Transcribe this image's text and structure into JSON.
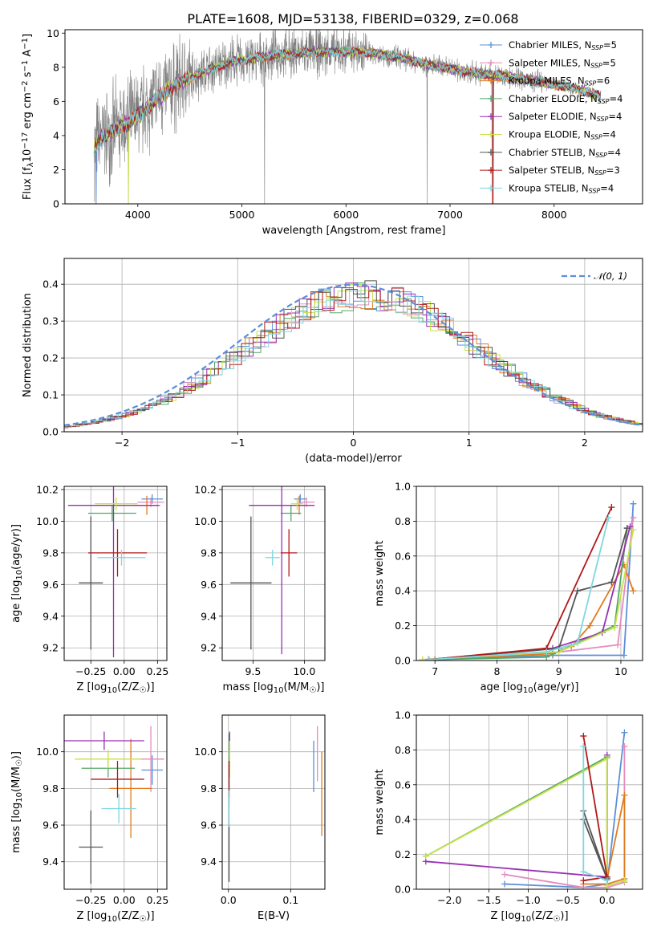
{
  "figure": {
    "title": "PLATE=1608, MJD=53138, FIBERID=0329, z=0.068"
  },
  "colors": {
    "Chabrier MILES": "#5b8fd9",
    "Salpeter MILES": "#e58bbd",
    "Kroupa MILES": "#e07b20",
    "Chabrier ELODIE": "#55a868",
    "Salpeter ELODIE": "#9a2fb5",
    "Kroupa ELODIE": "#c7e24a",
    "Chabrier STELIB": "#555555",
    "Salpeter STELIB": "#b01818",
    "Kroupa STELIB": "#7ed7e0",
    "data": "#808080",
    "normal": "#5b8fd9"
  },
  "chart_data": [
    {
      "id": "spectrum",
      "type": "line",
      "xlabel": "wavelength [Angstrom, rest frame]",
      "ylabel": "Flux [fλ10⁻¹⁷ erg cm⁻² s⁻¹ A⁻¹]",
      "xlim": [
        3300,
        8850
      ],
      "ylim": [
        0,
        10.2
      ],
      "xticks": [
        "4000",
        "5000",
        "6000",
        "7000",
        "8000"
      ],
      "yticks": [
        "0",
        "2",
        "4",
        "6",
        "8",
        "10"
      ],
      "grid": false,
      "legend_position": "top-right",
      "legend": [
        {
          "name": "Chabrier MILES",
          "n": "5"
        },
        {
          "name": "Salpeter MILES",
          "n": "5"
        },
        {
          "name": "Kroupa MILES",
          "n": "6"
        },
        {
          "name": "Chabrier ELODIE",
          "n": "4"
        },
        {
          "name": "Salpeter ELODIE",
          "n": "4"
        },
        {
          "name": "Kroupa ELODIE",
          "n": "4"
        },
        {
          "name": "Chabrier STELIB",
          "n": "4"
        },
        {
          "name": "Salpeter STELIB",
          "n": "3"
        },
        {
          "name": "Kroupa STELIB",
          "n": "4"
        }
      ],
      "continuum": {
        "x": [
          3580,
          3650,
          3750,
          3850,
          3950,
          4050,
          4150,
          4250,
          4350,
          4500,
          4700,
          4900,
          5100,
          5300,
          5500,
          5700,
          5900,
          6100,
          6300,
          6500,
          6700,
          6900,
          7100,
          7300,
          7500,
          7700,
          7900,
          8100,
          8300,
          8450
        ],
        "y": [
          3.3,
          3.9,
          4.2,
          4.6,
          4.9,
          5.4,
          6.0,
          6.5,
          6.9,
          7.4,
          7.9,
          8.3,
          8.5,
          8.7,
          8.8,
          8.9,
          8.9,
          8.9,
          8.8,
          8.6,
          8.3,
          8.0,
          7.8,
          7.6,
          7.5,
          7.3,
          7.1,
          6.9,
          6.6,
          6.3
        ]
      },
      "spikes": [
        {
          "x": 3600,
          "y": 0.0
        },
        {
          "x": 3910,
          "y": 0.0
        },
        {
          "x": 5218,
          "y": 0.0
        },
        {
          "x": 6780,
          "y": 0.0
        },
        {
          "x": 7410,
          "y": 0.0
        }
      ]
    },
    {
      "id": "residuals",
      "type": "bar",
      "xlabel": "(data-model)/error",
      "ylabel": "Normed distribution",
      "xlim": [
        -2.5,
        2.5
      ],
      "ylim": [
        0,
        0.47
      ],
      "xticks": [
        "−2",
        "−1",
        "0",
        "1",
        "2"
      ],
      "yticks": [
        "0.0",
        "0.1",
        "0.2",
        "0.3",
        "0.4"
      ],
      "grid": true,
      "legend_position": "top-right",
      "legend": [
        {
          "name": "N(0,1)"
        }
      ],
      "normal_curve": {
        "mean": 0,
        "sigma": 1
      }
    },
    {
      "id": "age-vs-Z",
      "type": "scatter",
      "xlabel": "Z [log10(Z/Z☉)]",
      "ylabel": "age  [log10(age/yr)]",
      "xlim": [
        -0.45,
        0.32
      ],
      "ylim": [
        9.12,
        10.22
      ],
      "xticks": [
        "−0.25",
        "0.00",
        "0.25"
      ],
      "yticks": [
        "9.2",
        "9.4",
        "9.6",
        "9.8",
        "10.0",
        "10.2"
      ],
      "grid": true,
      "errorbars": [
        {
          "series": "Chabrier MILES",
          "x": 0.21,
          "xerr": 0.08,
          "y": 10.14,
          "yerr": 0.03
        },
        {
          "series": "Salpeter MILES",
          "x": 0.2,
          "xerr": 0.1,
          "y": 10.12,
          "yerr": 0.03
        },
        {
          "series": "Kroupa MILES",
          "x": 0.17,
          "xerr": 0.1,
          "y": 10.1,
          "yerr": 0.06
        },
        {
          "series": "Chabrier ELODIE",
          "x": -0.09,
          "xerr": 0.18,
          "y": 10.05,
          "yerr": 0.05
        },
        {
          "series": "Salpeter ELODIE",
          "x": -0.08,
          "xerr": 0.34,
          "y": 10.1,
          "yerr": 0.96
        },
        {
          "series": "Kroupa ELODIE",
          "x": -0.06,
          "xerr": 0.16,
          "y": 10.11,
          "yerr": 0.04
        },
        {
          "series": "Chabrier STELIB",
          "x": -0.25,
          "xerr": 0.09,
          "y": 9.61,
          "yerr": 0.42
        },
        {
          "series": "Salpeter STELIB",
          "x": -0.05,
          "xerr": 0.22,
          "y": 9.8,
          "yerr": 0.15
        },
        {
          "series": "Kroupa STELIB",
          "x": -0.02,
          "xerr": 0.18,
          "y": 9.77,
          "yerr": 0.05
        }
      ]
    },
    {
      "id": "age-vs-mass",
      "type": "scatter",
      "xlabel": "mass [log10(M/M☉)]",
      "ylabel": "",
      "xlim": [
        9.2,
        10.2
      ],
      "ylim": [
        9.12,
        10.22
      ],
      "xticks": [
        "9.5",
        "10.0"
      ],
      "yticks": [
        "9.2",
        "9.4",
        "9.6",
        "9.8",
        "10.0",
        "10.2"
      ],
      "grid": true,
      "errorbars": [
        {
          "series": "Chabrier MILES",
          "x": 9.96,
          "xerr": 0.06,
          "y": 10.14,
          "yerr": 0.03
        },
        {
          "series": "Salpeter MILES",
          "x": 10.02,
          "xerr": 0.08,
          "y": 10.12,
          "yerr": 0.03
        },
        {
          "series": "Kroupa MILES",
          "x": 9.95,
          "xerr": 0.06,
          "y": 10.1,
          "yerr": 0.06
        },
        {
          "series": "Chabrier ELODIE",
          "x": 9.87,
          "xerr": 0.1,
          "y": 10.05,
          "yerr": 0.05
        },
        {
          "series": "Salpeter ELODIE",
          "x": 9.78,
          "xerr": 0.32,
          "y": 10.1,
          "yerr": 0.94
        },
        {
          "series": "Kroupa ELODIE",
          "x": 9.93,
          "xerr": 0.06,
          "y": 10.11,
          "yerr": 0.04
        },
        {
          "series": "Chabrier STELIB",
          "x": 9.48,
          "xerr": 0.2,
          "y": 9.61,
          "yerr": 0.42
        },
        {
          "series": "Salpeter STELIB",
          "x": 9.85,
          "xerr": 0.08,
          "y": 9.8,
          "yerr": 0.15
        },
        {
          "series": "Kroupa STELIB",
          "x": 9.69,
          "xerr": 0.07,
          "y": 9.77,
          "yerr": 0.05
        }
      ]
    },
    {
      "id": "weight-vs-age",
      "type": "line",
      "xlabel": "age  [log10(age/yr)]",
      "ylabel": "mass weight",
      "xlim": [
        6.7,
        10.35
      ],
      "ylim": [
        0,
        1.0
      ],
      "xticks": [
        "7",
        "8",
        "9",
        "10"
      ],
      "yticks": [
        "0.0",
        "0.2",
        "0.4",
        "0.6",
        "0.8",
        "1.0"
      ],
      "grid": true,
      "series": [
        {
          "name": "Chabrier MILES",
          "x": [
            7.0,
            8.9,
            10.05,
            10.2
          ],
          "y": [
            0.005,
            0.03,
            0.03,
            0.9
          ]
        },
        {
          "name": "Salpeter MILES",
          "x": [
            6.8,
            8.8,
            9.95,
            10.2
          ],
          "y": [
            0.005,
            0.04,
            0.09,
            0.82
          ]
        },
        {
          "name": "Kroupa MILES",
          "x": [
            7.0,
            8.9,
            9.2,
            9.5,
            10.05,
            10.2
          ],
          "y": [
            0.005,
            0.04,
            0.08,
            0.2,
            0.55,
            0.4
          ]
        },
        {
          "name": "Chabrier ELODIE",
          "x": [
            6.9,
            8.8,
            9.9,
            10.1
          ],
          "y": [
            0.005,
            0.02,
            0.2,
            0.76
          ]
        },
        {
          "name": "Salpeter ELODIE",
          "x": [
            6.9,
            8.9,
            9.7,
            10.15
          ],
          "y": [
            0.005,
            0.07,
            0.16,
            0.77
          ]
        },
        {
          "name": "Kroupa ELODIE",
          "x": [
            6.8,
            9.0,
            9.9,
            10.2
          ],
          "y": [
            0.005,
            0.05,
            0.19,
            0.75
          ]
        },
        {
          "name": "Chabrier STELIB",
          "x": [
            6.9,
            9.0,
            9.3,
            9.85,
            10.1
          ],
          "y": [
            0.005,
            0.07,
            0.4,
            0.45,
            0.76
          ]
        },
        {
          "name": "Salpeter STELIB",
          "x": [
            6.9,
            8.8,
            9.85
          ],
          "y": [
            0.005,
            0.07,
            0.88
          ]
        },
        {
          "name": "Kroupa STELIB",
          "x": [
            6.9,
            8.8,
            9.3,
            9.8
          ],
          "y": [
            0.005,
            0.05,
            0.1,
            0.82
          ]
        }
      ]
    },
    {
      "id": "mass-vs-Z",
      "type": "scatter",
      "xlabel": "Z [log10(Z/Z☉)]",
      "ylabel": "mass [log10(M/M☉)]",
      "xlim": [
        -0.45,
        0.32
      ],
      "ylim": [
        9.25,
        10.2
      ],
      "xticks": [
        "−0.25",
        "0.00",
        "0.25"
      ],
      "yticks": [
        "9.4",
        "9.6",
        "9.8",
        "10.0"
      ],
      "grid": true,
      "errorbars": [
        {
          "series": "Chabrier MILES",
          "x": 0.21,
          "xerr": 0.08,
          "y": 9.9,
          "yerr": 0.08
        },
        {
          "series": "Salpeter MILES",
          "x": 0.2,
          "xerr": 0.1,
          "y": 9.96,
          "yerr": 0.18
        },
        {
          "series": "Kroupa MILES",
          "x": 0.05,
          "xerr": 0.16,
          "y": 9.8,
          "yerr": 0.27
        },
        {
          "series": "Chabrier ELODIE",
          "x": -0.12,
          "xerr": 0.2,
          "y": 9.91,
          "yerr": 0.05
        },
        {
          "series": "Salpeter ELODIE",
          "x": -0.15,
          "xerr": 0.3,
          "y": 10.06,
          "yerr": 0.05
        },
        {
          "series": "Kroupa ELODIE",
          "x": -0.12,
          "xerr": 0.25,
          "y": 9.96,
          "yerr": 0.05
        },
        {
          "series": "Chabrier STELIB",
          "x": -0.25,
          "xerr": 0.09,
          "y": 9.48,
          "yerr": 0.2
        },
        {
          "series": "Salpeter STELIB",
          "x": -0.05,
          "xerr": 0.2,
          "y": 9.85,
          "yerr": 0.1
        },
        {
          "series": "Kroupa STELIB",
          "x": -0.04,
          "xerr": 0.13,
          "y": 9.69,
          "yerr": 0.08
        }
      ]
    },
    {
      "id": "mass-vs-EBV",
      "type": "scatter",
      "xlabel": "E(B-V)",
      "ylabel": "",
      "xlim": [
        -0.01,
        0.155
      ],
      "ylim": [
        9.25,
        10.2
      ],
      "xticks": [
        "0.0",
        "0.1"
      ],
      "yticks": [
        "9.4",
        "9.6",
        "9.8",
        "10.0"
      ],
      "grid": true,
      "errorbars": [
        {
          "series": "Chabrier MILES",
          "x": 0.137,
          "xerr": 0.0,
          "y": 9.92,
          "yerr": 0.14
        },
        {
          "series": "Salpeter MILES",
          "x": 0.143,
          "xerr": 0.0,
          "y": 9.99,
          "yerr": 0.15
        },
        {
          "series": "Kroupa MILES",
          "x": 0.15,
          "xerr": 0.0,
          "y": 9.77,
          "yerr": 0.23
        },
        {
          "series": "Chabrier ELODIE",
          "x": 0.001,
          "xerr": 0.0,
          "y": 9.9,
          "yerr": 0.2
        },
        {
          "series": "Salpeter ELODIE",
          "x": 0.002,
          "xerr": 0.0,
          "y": 10.06,
          "yerr": 0.05
        },
        {
          "series": "Kroupa ELODIE",
          "x": 0.002,
          "xerr": 0.0,
          "y": 9.96,
          "yerr": 0.1
        },
        {
          "series": "Chabrier STELIB",
          "x": 0.001,
          "xerr": 0.0,
          "y": 9.45,
          "yerr": 0.16
        },
        {
          "series": "Salpeter STELIB",
          "x": 0.001,
          "xerr": 0.0,
          "y": 9.85,
          "yerr": 0.1
        },
        {
          "series": "Kroupa STELIB",
          "x": 0.001,
          "xerr": 0.0,
          "y": 9.69,
          "yerr": 0.1
        }
      ]
    },
    {
      "id": "weight-vs-Z",
      "type": "line",
      "xlabel": "Z [log10(Z/Z☉)]",
      "ylabel": "mass weight",
      "xlim": [
        -2.42,
        0.45
      ],
      "ylim": [
        0,
        1.0
      ],
      "xticks": [
        "−2.0",
        "−1.5",
        "−1.0",
        "−0.5",
        "0.0"
      ],
      "yticks": [
        "0.0",
        "0.2",
        "0.4",
        "0.6",
        "0.8",
        "1.0"
      ],
      "grid": true,
      "series": [
        {
          "name": "Chabrier MILES",
          "x": [
            -1.3,
            -0.3,
            0.0,
            0.22
          ],
          "y": [
            0.03,
            0.01,
            0.03,
            0.9
          ]
        },
        {
          "name": "Salpeter MILES",
          "x": [
            -1.3,
            -0.3,
            0.0,
            0.22,
            0.22
          ],
          "y": [
            0.085,
            0.01,
            0.01,
            0.04,
            0.82
          ]
        },
        {
          "name": "Kroupa MILES",
          "x": [
            -0.3,
            0.0,
            0.22,
            0.22,
            0.0
          ],
          "y": [
            0.03,
            0.03,
            0.06,
            0.54,
            0.06
          ]
        },
        {
          "name": "Chabrier ELODIE",
          "x": [
            -2.3,
            0.0,
            0.0
          ],
          "y": [
            0.19,
            0.76,
            0.06
          ]
        },
        {
          "name": "Salpeter ELODIE",
          "x": [
            -2.3,
            0.0,
            0.0
          ],
          "y": [
            0.16,
            0.07,
            0.77
          ]
        },
        {
          "name": "Kroupa ELODIE",
          "x": [
            -2.3,
            0.0,
            0.0,
            0.22
          ],
          "y": [
            0.19,
            0.75,
            0.02,
            0.05
          ]
        },
        {
          "name": "Chabrier STELIB",
          "x": [
            -0.3,
            0.0,
            -0.3
          ],
          "y": [
            0.45,
            0.06,
            0.4
          ]
        },
        {
          "name": "Salpeter STELIB",
          "x": [
            -0.3,
            0.0,
            -0.3
          ],
          "y": [
            0.88,
            0.07,
            0.05
          ]
        },
        {
          "name": "Kroupa STELIB",
          "x": [
            -0.3,
            -0.3,
            0.0
          ],
          "y": [
            0.82,
            0.1,
            0.05
          ]
        }
      ]
    }
  ]
}
